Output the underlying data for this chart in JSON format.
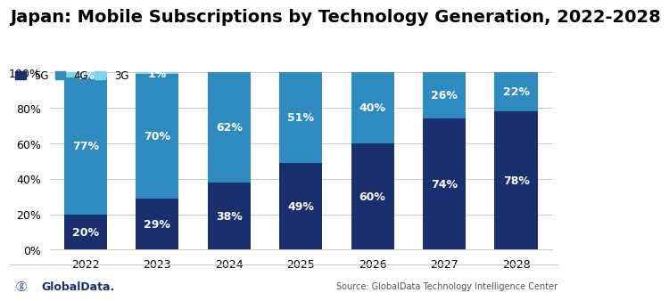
{
  "title": "Japan: Mobile Subscriptions by Technology Generation, 2022-2028",
  "years": [
    "2022",
    "2023",
    "2024",
    "2025",
    "2026",
    "2027",
    "2028"
  ],
  "5g": [
    20,
    29,
    38,
    49,
    60,
    74,
    78
  ],
  "4g": [
    77,
    70,
    62,
    51,
    40,
    26,
    22
  ],
  "3g": [
    3,
    1,
    0,
    0,
    0,
    0,
    0
  ],
  "color_5g": "#1a2f6e",
  "color_4g": "#2e8bc0",
  "color_3g": "#7fd4e8",
  "source_text": "Source: GlobalData Technology Intelligence Center",
  "logo_text": "GlobalData.",
  "ylim": [
    0,
    100
  ],
  "yticks": [
    0,
    20,
    40,
    60,
    80,
    100
  ],
  "ytick_labels": [
    "0%",
    "20%",
    "40%",
    "60%",
    "80%",
    "100%"
  ],
  "background_color": "#ffffff",
  "title_fontsize": 14,
  "label_fontsize": 9,
  "bar_width": 0.6
}
